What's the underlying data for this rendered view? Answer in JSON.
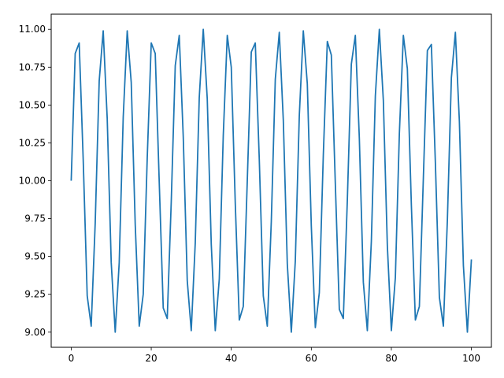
{
  "chart_data": {
    "type": "line",
    "title": "",
    "xlabel": "",
    "ylabel": "",
    "xlim": [
      -5,
      105
    ],
    "ylim": [
      8.9,
      11.1
    ],
    "xticks": [
      0,
      20,
      40,
      60,
      80,
      100
    ],
    "yticks": [
      9.0,
      9.25,
      9.5,
      9.75,
      10.0,
      10.25,
      10.5,
      10.75,
      11.0
    ],
    "xtick_labels": [
      "0",
      "20",
      "40",
      "60",
      "80",
      "100"
    ],
    "ytick_labels": [
      "9.00",
      "9.25",
      "9.50",
      "9.75",
      "10.00",
      "10.25",
      "10.50",
      "10.75",
      "11.00"
    ],
    "grid": false,
    "series": [
      {
        "color": "#1f77b4",
        "x": [
          0,
          1,
          2,
          3,
          4,
          5,
          6,
          7,
          8,
          9,
          10,
          11,
          12,
          13,
          14,
          15,
          16,
          17,
          18,
          19,
          20,
          21,
          22,
          23,
          24,
          25,
          26,
          27,
          28,
          29,
          30,
          31,
          32,
          33,
          34,
          35,
          36,
          37,
          38,
          39,
          40,
          41,
          42,
          43,
          44,
          45,
          46,
          47,
          48,
          49,
          50,
          51,
          52,
          53,
          54,
          55,
          56,
          57,
          58,
          59,
          60,
          61,
          62,
          63,
          64,
          65,
          66,
          67,
          68,
          69,
          70,
          71,
          72,
          73,
          74,
          75,
          76,
          77,
          78,
          79,
          80,
          81,
          82,
          83,
          84,
          85,
          86,
          87,
          88,
          89,
          90,
          91,
          92,
          93,
          94,
          95,
          96,
          97,
          98,
          99,
          100
        ],
        "y": [
          10.0,
          10.84,
          10.91,
          10.14,
          9.24,
          9.04,
          9.72,
          10.66,
          10.99,
          10.41,
          9.46,
          9.0,
          9.46,
          10.42,
          10.99,
          10.65,
          9.71,
          9.04,
          9.25,
          10.15,
          10.91,
          10.84,
          9.99,
          9.16,
          9.09,
          9.86,
          10.76,
          10.96,
          10.29,
          9.34,
          9.01,
          9.59,
          10.55,
          11.0,
          10.54,
          9.58,
          9.01,
          9.35,
          10.3,
          10.96,
          10.75,
          9.85,
          9.08,
          9.17,
          10.0,
          10.85,
          10.91,
          10.14,
          9.24,
          9.04,
          9.73,
          10.67,
          10.98,
          10.4,
          9.45,
          9.0,
          9.47,
          10.43,
          10.99,
          10.64,
          9.7,
          9.03,
          9.26,
          10.17,
          10.92,
          10.83,
          9.98,
          9.15,
          9.09,
          9.87,
          10.77,
          10.96,
          10.28,
          9.33,
          9.01,
          9.6,
          10.56,
          11.0,
          10.53,
          9.57,
          9.01,
          9.36,
          10.31,
          10.96,
          10.74,
          9.84,
          9.08,
          9.17,
          10.02,
          10.86,
          10.9,
          10.12,
          9.23,
          9.04,
          9.74,
          10.68,
          10.98,
          10.39,
          9.44,
          9.0,
          9.48
        ]
      }
    ]
  }
}
